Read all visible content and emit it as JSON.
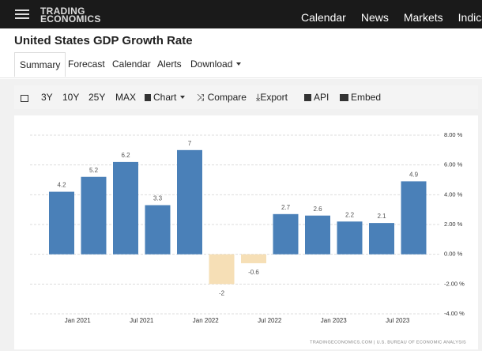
{
  "header": {
    "logo": [
      "TRADING",
      "ECONOMICS"
    ],
    "nav": [
      "Calendar",
      "News",
      "Markets",
      "Indica"
    ]
  },
  "page_title": "United States GDP Growth Rate",
  "tabs": [
    "Summary",
    "Forecast",
    "Calendar",
    "Alerts",
    "Download"
  ],
  "toolbar": [
    "3Y",
    "10Y",
    "25Y",
    "MAX",
    "Chart",
    "Compare",
    "Export",
    "API",
    "Embed"
  ],
  "chart_data": {
    "type": "bar",
    "categories": [
      null,
      null,
      null,
      null,
      null,
      null,
      null,
      null,
      null,
      null,
      null,
      null
    ],
    "values": [
      4.2,
      5.2,
      6.2,
      3.3,
      7,
      -2,
      -0.6,
      2.7,
      2.6,
      2.2,
      2.1,
      4.9
    ],
    "color": "#4a80b8",
    "negative_color": "#f6dfb6",
    "xtick_labels": [
      "Jan 2021",
      "Jul 2021",
      "Jan 2022",
      "Jul 2022",
      "Jan 2023",
      "Jul 2023"
    ],
    "ylim": [
      -4,
      8
    ],
    "yticks": [
      {
        "value": -4,
        "label": "-4.00 %"
      },
      {
        "value": -2,
        "label": "-2.00 %"
      },
      {
        "value": 0,
        "label": "0.00 %"
      },
      {
        "value": 2,
        "label": "2.00 %"
      },
      {
        "value": 4,
        "label": "4.00 %"
      },
      {
        "value": 6,
        "label": "6.00 %"
      },
      {
        "value": 8,
        "label": "8.00 %"
      }
    ],
    "grid": true,
    "source": "TRADINGECONOMICS.COM | U.S. BUREAU OF ECONOMIC ANALYSIS"
  }
}
